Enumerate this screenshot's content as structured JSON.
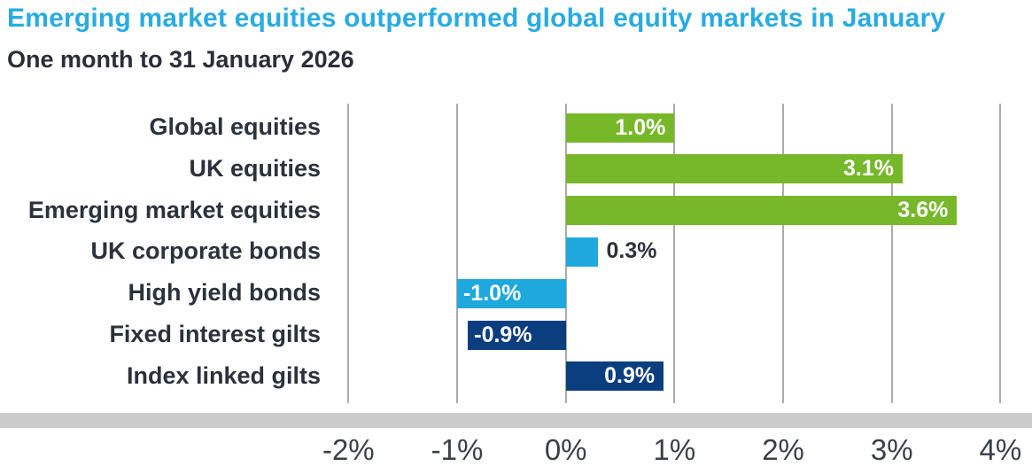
{
  "header": {
    "title": "Emerging market equities outperformed global equity markets in January",
    "subtitle": "One month to 31 January 2026"
  },
  "chart_data": {
    "type": "bar",
    "orientation": "horizontal",
    "title": "Emerging market equities outperformed global equity markets in January",
    "subtitle": "One month to 31 January 2026",
    "categories": [
      "Global equities",
      "UK equities",
      "Emerging market equities",
      "UK corporate bonds",
      "High yield bonds",
      "Fixed interest gilts",
      "Index linked gilts"
    ],
    "values": [
      1.0,
      3.1,
      3.6,
      0.3,
      -1.0,
      -0.9,
      0.9
    ],
    "value_labels": [
      "1.0%",
      "3.1%",
      "3.6%",
      "0.3%",
      "-1.0%",
      "-0.9%",
      "0.9%"
    ],
    "bar_colors": [
      "#76B82A",
      "#76B82A",
      "#76B82A",
      "#1FA8DD",
      "#1FA8DD",
      "#0B3E7F",
      "#0B3E7F"
    ],
    "value_label_placement": [
      "inside",
      "inside",
      "inside",
      "outside",
      "inside",
      "inside",
      "inside"
    ],
    "x_ticks": [
      "-2%",
      "-1%",
      "0%",
      "1%",
      "2%",
      "3%",
      "4%"
    ],
    "x_tick_values": [
      -2,
      -1,
      0,
      1,
      2,
      3,
      4
    ],
    "xlim": [
      -2.19,
      4.29
    ],
    "grid": true,
    "legend": "none",
    "xlabel": "",
    "ylabel": ""
  },
  "colors": {
    "title": "#29ABE2",
    "subtitle_text": "#2B2E37",
    "category_text": "#2B323C",
    "tick_text": "#3A3F47",
    "gridline": "#ABABAB",
    "axis_band": "#CBCBCB",
    "green": "#76B82A",
    "cyan": "#1FA8DD",
    "navy": "#0B3E7F"
  }
}
